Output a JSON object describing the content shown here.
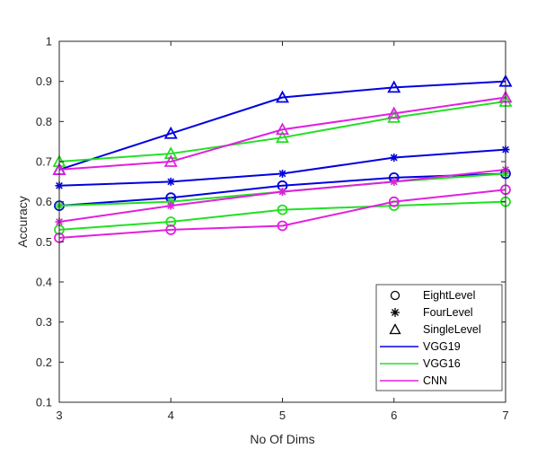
{
  "chart_data": {
    "type": "line",
    "xlabel": "No Of Dims",
    "ylabel": "Accuracy",
    "xlim": [
      3,
      7
    ],
    "ylim": [
      0.1,
      1
    ],
    "x_ticks": [
      "3",
      "4",
      "5",
      "6",
      "7"
    ],
    "y_ticks": [
      "0.1",
      "0.2",
      "0.3",
      "0.4",
      "0.5",
      "0.6",
      "0.7",
      "0.8",
      "0.9",
      "1"
    ],
    "x": [
      3,
      4,
      5,
      6,
      7
    ],
    "grid": false,
    "legend_position": "bottom-right",
    "legend": {
      "markers": [
        {
          "label": "EightLevel",
          "marker": "circle"
        },
        {
          "label": "FourLevel",
          "marker": "star"
        },
        {
          "label": "SingleLevel",
          "marker": "triangle"
        }
      ],
      "lines": [
        {
          "label": "VGG19",
          "color": "#0000e0"
        },
        {
          "label": "VGG16",
          "color": "#22e022"
        },
        {
          "label": "CNN",
          "color": "#e020e0"
        }
      ]
    },
    "series": [
      {
        "model": "VGG19",
        "level": "EightLevel",
        "color": "#0000e0",
        "marker": "circle",
        "values": [
          0.59,
          0.61,
          0.64,
          0.66,
          0.67
        ]
      },
      {
        "model": "VGG19",
        "level": "FourLevel",
        "color": "#0000e0",
        "marker": "star",
        "values": [
          0.64,
          0.65,
          0.67,
          0.71,
          0.73
        ]
      },
      {
        "model": "VGG19",
        "level": "SingleLevel",
        "color": "#0000e0",
        "marker": "triangle",
        "values": [
          0.68,
          0.77,
          0.86,
          0.885,
          0.9
        ]
      },
      {
        "model": "VGG16",
        "level": "EightLevel",
        "color": "#22e022",
        "marker": "circle",
        "values": [
          0.53,
          0.55,
          0.58,
          0.59,
          0.6
        ]
      },
      {
        "model": "VGG16",
        "level": "FourLevel",
        "color": "#22e022",
        "marker": "star",
        "values": [
          0.59,
          0.6,
          0.625,
          0.65,
          0.67
        ]
      },
      {
        "model": "VGG16",
        "level": "SingleLevel",
        "color": "#22e022",
        "marker": "triangle",
        "values": [
          0.7,
          0.72,
          0.76,
          0.81,
          0.85
        ]
      },
      {
        "model": "CNN",
        "level": "EightLevel",
        "color": "#e020e0",
        "marker": "circle",
        "values": [
          0.51,
          0.53,
          0.54,
          0.6,
          0.63
        ]
      },
      {
        "model": "CNN",
        "level": "FourLevel",
        "color": "#e020e0",
        "marker": "star",
        "values": [
          0.55,
          0.59,
          0.625,
          0.65,
          0.68
        ]
      },
      {
        "model": "CNN",
        "level": "SingleLevel",
        "color": "#e020e0",
        "marker": "triangle",
        "values": [
          0.68,
          0.7,
          0.78,
          0.82,
          0.86
        ]
      }
    ]
  }
}
